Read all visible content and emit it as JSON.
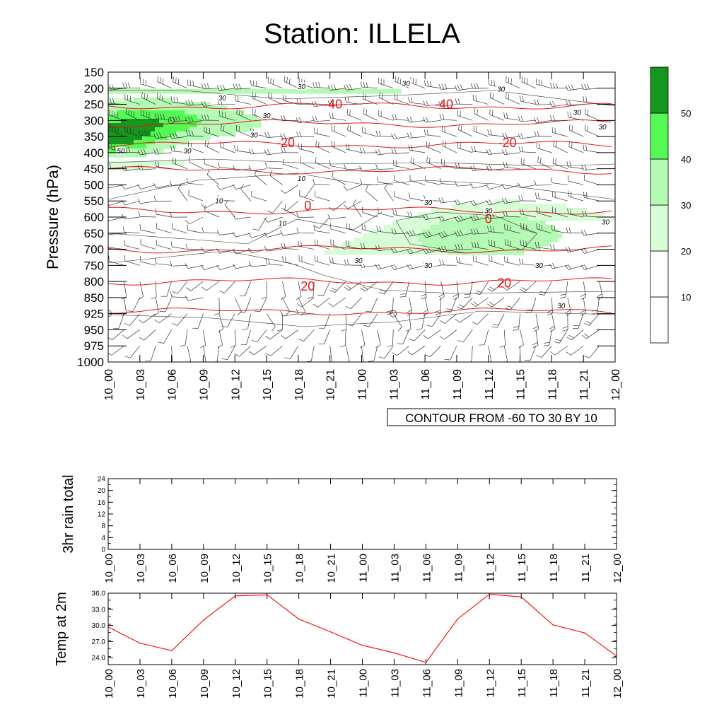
{
  "title": "Station: ILLELA",
  "time_labels": [
    "10_00",
    "10_03",
    "10_06",
    "10_09",
    "10_12",
    "10_15",
    "10_18",
    "10_21",
    "11_00",
    "11_03",
    "11_06",
    "11_09",
    "11_12",
    "11_15",
    "11_18",
    "11_21",
    "12_00"
  ],
  "chart_data": [
    {
      "type": "heatmap",
      "name": "cross-section",
      "ylabel": "Pressure (hPa)",
      "y_ticks": [
        150,
        200,
        250,
        300,
        350,
        400,
        450,
        500,
        550,
        600,
        650,
        700,
        750,
        800,
        850,
        925,
        950,
        975,
        1000
      ],
      "y_range": [
        150,
        1000
      ],
      "y_inverted": true,
      "footnote": "CONTOUR FROM -60 TO 30 BY 10",
      "colorbar": {
        "levels": [
          10,
          20,
          30,
          40,
          50
        ],
        "colors": [
          "#ffffff",
          "#ffffff",
          "#d7fdd7",
          "#b4f9b4",
          "#55f955",
          "#17961e"
        ]
      },
      "temperature_contours": [
        {
          "value": -40,
          "pressure": 255
        },
        {
          "value": -30,
          "pressure": 310
        },
        {
          "value": -20,
          "pressure": 375
        },
        {
          "value": -10,
          "pressure": 455
        },
        {
          "value": 0,
          "pressure": 580
        },
        {
          "value": 10,
          "pressure": 700
        },
        {
          "value": 20,
          "pressure": 800
        },
        {
          "value": 30,
          "pressure": 915
        }
      ],
      "contour_labels": [
        {
          "text": "-40",
          "time": 7.1,
          "pressure": 250
        },
        {
          "text": "-40",
          "time": 10.6,
          "pressure": 250
        },
        {
          "text": "-20",
          "time": 5.6,
          "pressure": 370
        },
        {
          "text": "-20",
          "time": 12.6,
          "pressure": 370
        },
        {
          "text": "0",
          "time": 6.3,
          "pressure": 565
        },
        {
          "text": "0",
          "time": 12.0,
          "pressure": 605
        },
        {
          "text": "20",
          "time": 6.3,
          "pressure": 815
        },
        {
          "text": "20",
          "time": 12.5,
          "pressure": 805
        }
      ],
      "speed_labels": [
        {
          "text": "30",
          "time": 6.1,
          "pressure": 195
        },
        {
          "text": "30",
          "time": 9.4,
          "pressure": 185
        },
        {
          "text": "30",
          "time": 12.4,
          "pressure": 203
        },
        {
          "text": "30",
          "time": 3.6,
          "pressure": 230
        },
        {
          "text": "30",
          "time": 5.0,
          "pressure": 285
        },
        {
          "text": "30",
          "time": 4.6,
          "pressure": 345
        },
        {
          "text": "30",
          "time": 2.5,
          "pressure": 395
        },
        {
          "text": "50",
          "time": 0.4,
          "pressure": 395
        },
        {
          "text": "30",
          "time": 14.8,
          "pressure": 275
        },
        {
          "text": "30",
          "time": 15.6,
          "pressure": 320
        },
        {
          "text": "10",
          "time": 6.1,
          "pressure": 480
        },
        {
          "text": "10",
          "time": 3.5,
          "pressure": 550
        },
        {
          "text": "10",
          "time": 5.5,
          "pressure": 620
        },
        {
          "text": "30",
          "time": 10.1,
          "pressure": 555
        },
        {
          "text": "30",
          "time": 12.0,
          "pressure": 580
        },
        {
          "text": "30",
          "time": 15.7,
          "pressure": 615
        },
        {
          "text": "30",
          "time": 7.9,
          "pressure": 735
        },
        {
          "text": "30",
          "time": 10.1,
          "pressure": 750
        },
        {
          "text": "30",
          "time": 13.6,
          "pressure": 750
        },
        {
          "text": "30",
          "time": 14.3,
          "pressure": 888
        }
      ]
    },
    {
      "type": "line",
      "name": "rain",
      "ylabel": "3hr rain total",
      "y_ticks": [
        0,
        4,
        8,
        12,
        16,
        20,
        24
      ],
      "ylim": [
        0,
        24
      ],
      "values": []
    },
    {
      "type": "line",
      "name": "temperature",
      "ylabel": "Temp at 2m",
      "y_ticks": [
        "24.0",
        "27.0",
        "30.0",
        "33.0",
        "36.0"
      ],
      "ylim": [
        22.7,
        36.0
      ],
      "color": "#ff0000",
      "values": [
        29.7,
        26.7,
        25.3,
        31.0,
        35.5,
        35.7,
        31.2,
        28.8,
        26.3,
        24.9,
        23.1,
        31.2,
        35.8,
        35.3,
        30.1,
        28.6,
        24.3
      ]
    }
  ]
}
